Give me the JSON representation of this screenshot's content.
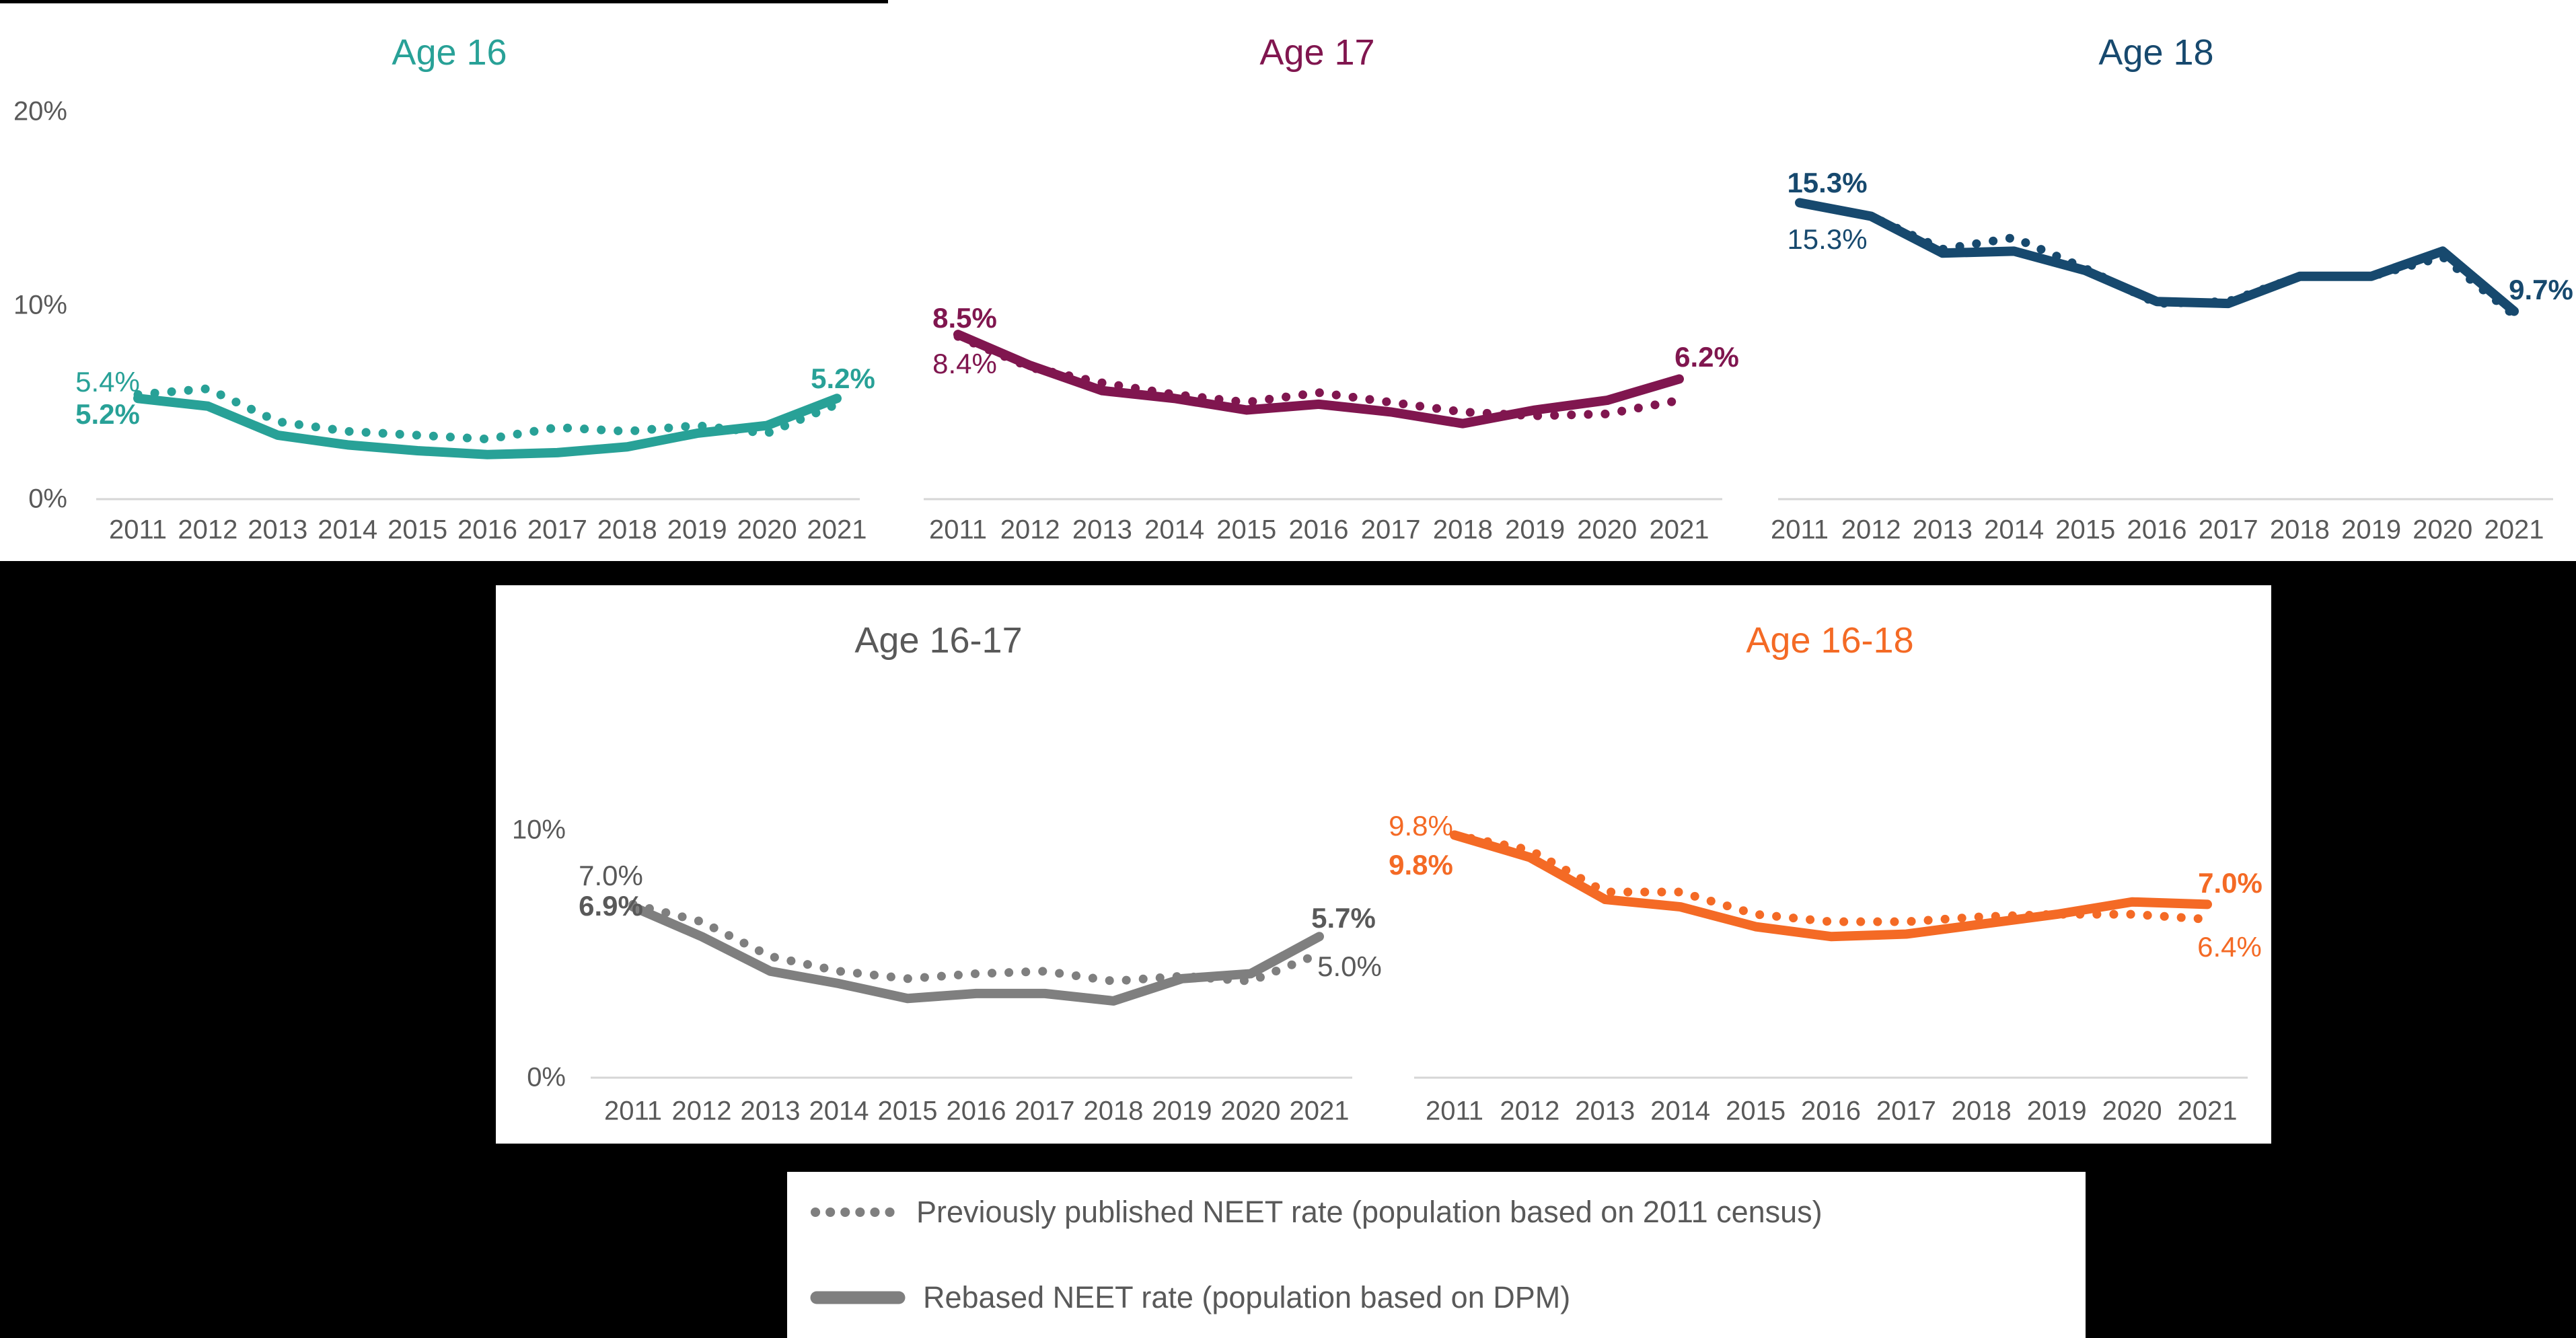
{
  "page": {
    "background_color": "#000000",
    "top_band_color": "#FFFFFF",
    "axis_text_color": "#595959",
    "gridline_color": "#D6D6D6"
  },
  "legend": {
    "swatch_color": "#7F7F7F",
    "text_color": "#595959",
    "items": [
      {
        "style": "dotted",
        "label": "Previously published NEET rate (population based on 2011 census)"
      },
      {
        "style": "solid",
        "label": "Rebased NEET rate (population based on DPM)"
      }
    ]
  },
  "chart_data": [
    {
      "type": "line",
      "title": "Age 16",
      "color": "#28A197",
      "title_color": "#28A197",
      "x": [
        2011,
        2012,
        2013,
        2014,
        2015,
        2016,
        2017,
        2018,
        2019,
        2020,
        2021
      ],
      "ylim": [
        0,
        20
      ],
      "yticks": [
        {
          "value": 20,
          "label": "20%"
        },
        {
          "value": 10,
          "label": "10%"
        },
        {
          "value": 0,
          "label": "0%"
        }
      ],
      "legend_position": "none",
      "grid": "baseline-only",
      "series": [
        {
          "name": "Previously published NEET rate (population based on 2011 census)",
          "style": "dotted",
          "values": [
            5.4,
            5.7,
            4.0,
            3.5,
            3.3,
            3.1,
            3.7,
            3.5,
            3.8,
            3.4,
            4.9
          ]
        },
        {
          "name": "Rebased NEET rate (population based on DPM)",
          "style": "solid",
          "values": [
            5.2,
            4.8,
            3.3,
            2.8,
            2.5,
            2.3,
            2.4,
            2.7,
            3.4,
            3.8,
            5.2
          ]
        }
      ],
      "point_labels": [
        {
          "text": "5.4%",
          "bold": false
        },
        {
          "text": "5.2%",
          "bold": true
        },
        {
          "text": "5.2%",
          "bold": true
        }
      ]
    },
    {
      "type": "line",
      "title": "Age 17",
      "color": "#80164F",
      "title_color": "#80164F",
      "x": [
        2011,
        2012,
        2013,
        2014,
        2015,
        2016,
        2017,
        2018,
        2019,
        2020,
        2021
      ],
      "ylim": [
        0,
        20
      ],
      "yticks": [],
      "legend_position": "none",
      "grid": "baseline-only",
      "series": [
        {
          "name": "Previously published NEET rate (population based on 2011 census)",
          "style": "dotted",
          "values": [
            8.4,
            6.8,
            6.0,
            5.4,
            5.0,
            5.5,
            5.0,
            4.5,
            4.3,
            4.4,
            5.1
          ]
        },
        {
          "name": "Rebased NEET rate (population based on DPM)",
          "style": "solid",
          "values": [
            8.5,
            6.9,
            5.6,
            5.2,
            4.6,
            4.9,
            4.5,
            3.9,
            4.6,
            5.1,
            6.2
          ]
        }
      ],
      "point_labels": [
        {
          "text": "8.5%",
          "bold": true
        },
        {
          "text": "8.4%",
          "bold": false
        },
        {
          "text": "6.2%",
          "bold": true
        }
      ]
    },
    {
      "type": "line",
      "title": "Age 18",
      "color": "#17496E",
      "title_color": "#17496E",
      "x": [
        2011,
        2012,
        2013,
        2014,
        2015,
        2016,
        2017,
        2018,
        2019,
        2020,
        2021
      ],
      "ylim": [
        0,
        20
      ],
      "yticks": [],
      "legend_position": "none",
      "grid": "baseline-only",
      "series": [
        {
          "name": "Previously published NEET rate (population based on 2011 census)",
          "style": "dotted",
          "values": [
            15.3,
            14.6,
            12.9,
            13.5,
            11.9,
            10.1,
            10.2,
            11.5,
            11.5,
            12.5,
            9.5
          ]
        },
        {
          "name": "Rebased NEET rate (population based on DPM)",
          "style": "solid",
          "values": [
            15.3,
            14.6,
            12.7,
            12.8,
            11.8,
            10.2,
            10.1,
            11.5,
            11.5,
            12.8,
            9.7
          ]
        }
      ],
      "point_labels": [
        {
          "text": "15.3%",
          "bold": true
        },
        {
          "text": "15.3%",
          "bold": false
        },
        {
          "text": "9.7%",
          "bold": true
        }
      ]
    },
    {
      "type": "line",
      "title": "Age 16-17",
      "color": "#7F7F7F",
      "title_color": "#595959",
      "x": [
        2011,
        2012,
        2013,
        2014,
        2015,
        2016,
        2017,
        2018,
        2019,
        2020,
        2021
      ],
      "ylim": [
        0,
        10
      ],
      "yticks": [
        {
          "value": 10,
          "label": "10%"
        },
        {
          "value": 0,
          "label": "0%"
        }
      ],
      "legend_position": "none",
      "grid": "baseline-only",
      "series": [
        {
          "name": "Previously published NEET rate (population based on 2011 census)",
          "style": "dotted",
          "values": [
            7.0,
            6.3,
            4.9,
            4.3,
            4.0,
            4.2,
            4.3,
            3.9,
            4.1,
            3.9,
            5.0
          ]
        },
        {
          "name": "Rebased NEET rate (population based on DPM)",
          "style": "solid",
          "values": [
            6.9,
            5.7,
            4.3,
            3.8,
            3.2,
            3.4,
            3.4,
            3.1,
            4.0,
            4.2,
            5.7
          ]
        }
      ],
      "point_labels": [
        {
          "text": "7.0%",
          "bold": false
        },
        {
          "text": "6.9%",
          "bold": true
        },
        {
          "text": "5.7%",
          "bold": true
        },
        {
          "text": "5.0%",
          "bold": false
        }
      ]
    },
    {
      "type": "line",
      "title": "Age 16-18",
      "color": "#F46A25",
      "title_color": "#F46A25",
      "x": [
        2011,
        2012,
        2013,
        2014,
        2015,
        2016,
        2017,
        2018,
        2019,
        2020,
        2021
      ],
      "ylim": [
        0,
        10
      ],
      "yticks": [],
      "legend_position": "none",
      "grid": "baseline-only",
      "series": [
        {
          "name": "Previously published NEET rate (population based on 2011 census)",
          "style": "dotted",
          "values": [
            9.8,
            9.2,
            7.5,
            7.5,
            6.6,
            6.3,
            6.3,
            6.5,
            6.6,
            6.6,
            6.4
          ]
        },
        {
          "name": "Rebased NEET rate (population based on DPM)",
          "style": "solid",
          "values": [
            9.8,
            8.9,
            7.2,
            6.9,
            6.1,
            5.7,
            5.8,
            6.2,
            6.6,
            7.1,
            7.0
          ]
        }
      ],
      "point_labels": [
        {
          "text": "9.8%",
          "bold": false
        },
        {
          "text": "9.8%",
          "bold": true
        },
        {
          "text": "7.0%",
          "bold": true
        },
        {
          "text": "6.4%",
          "bold": false
        }
      ]
    }
  ]
}
